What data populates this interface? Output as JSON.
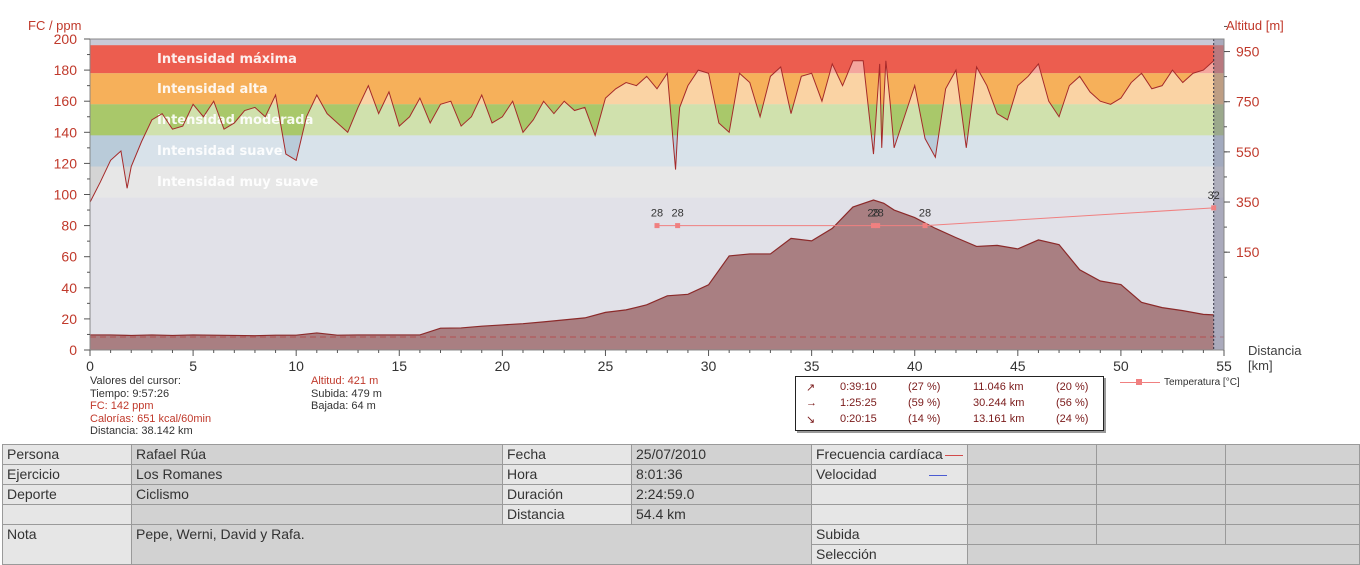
{
  "chart_data": {
    "type": "area",
    "left_axis": {
      "label": "FC / ppm",
      "ticks": [
        0,
        20,
        40,
        60,
        80,
        100,
        120,
        140,
        160,
        180,
        200
      ],
      "range": [
        0,
        200
      ]
    },
    "right_axis": {
      "label": "Altitud [m]",
      "ticks": [
        150,
        350,
        550,
        750,
        950
      ],
      "range": [
        -240,
        1000
      ]
    },
    "x_axis": {
      "label_line1": "Distancia",
      "label_line2": "[km]",
      "ticks": [
        0,
        5,
        10,
        15,
        20,
        25,
        30,
        35,
        40,
        45,
        50,
        55
      ],
      "range": [
        0,
        55
      ]
    },
    "zones": [
      {
        "name": "Intensidad máxima",
        "min": 178,
        "max": 196,
        "color": "#ec5d4f"
      },
      {
        "name": "Intensidad alta",
        "min": 158,
        "max": 178,
        "color": "#f6b05a"
      },
      {
        "name": "Intensidad moderada",
        "min": 138,
        "max": 158,
        "color": "#a9c86a"
      },
      {
        "name": "Intensidad suave",
        "min": 118,
        "max": 138,
        "color": "#b9cbd9"
      },
      {
        "name": "Intensidad muy suave",
        "min": 98,
        "max": 118,
        "color": "#d4d4d4"
      }
    ],
    "series": [
      {
        "name": "Frecuencia cardíaca",
        "unit": "ppm",
        "x": [
          0,
          0.5,
          1,
          1.5,
          1.8,
          2,
          2.5,
          3,
          3.5,
          4,
          4.5,
          5,
          5.5,
          6,
          6.5,
          7,
          7.5,
          8,
          8.5,
          9,
          9.5,
          10,
          10.5,
          11,
          11.5,
          12,
          12.5,
          13,
          13.5,
          14,
          14.5,
          15,
          15.5,
          16,
          16.5,
          17,
          17.5,
          18,
          18.5,
          19,
          19.5,
          20,
          20.5,
          21,
          21.5,
          22,
          22.5,
          23,
          23.5,
          24,
          24.5,
          25,
          25.5,
          26,
          26.5,
          27,
          27.5,
          28,
          28.4,
          28.5,
          28.6,
          29,
          29.5,
          30,
          30.5,
          31,
          31.5,
          32,
          32.5,
          33,
          33.5,
          34,
          34.5,
          35,
          35.5,
          36,
          36.5,
          37,
          37.5,
          38,
          38.3,
          38.4,
          38.5,
          38.6,
          38.8,
          39,
          39.5,
          40,
          40.5,
          41,
          41.5,
          42,
          42.5,
          43,
          43.5,
          44,
          44.5,
          45,
          45.5,
          46,
          46.5,
          47,
          47.5,
          48,
          48.5,
          49,
          49.5,
          50,
          50.5,
          51,
          51.5,
          52,
          52.5,
          53,
          53.5,
          54,
          54.5
        ],
        "values": [
          95,
          108,
          122,
          128,
          104,
          118,
          134,
          148,
          152,
          142,
          144,
          158,
          150,
          160,
          142,
          146,
          154,
          156,
          150,
          164,
          126,
          122,
          150,
          164,
          152,
          146,
          140,
          156,
          170,
          152,
          166,
          144,
          150,
          162,
          146,
          158,
          160,
          144,
          150,
          164,
          146,
          150,
          160,
          140,
          148,
          160,
          152,
          160,
          154,
          156,
          138,
          162,
          168,
          172,
          170,
          176,
          168,
          178,
          116,
          140,
          156,
          170,
          180,
          178,
          146,
          140,
          178,
          172,
          150,
          176,
          182,
          152,
          176,
          178,
          160,
          184,
          170,
          186,
          186,
          126,
          184,
          130,
          160,
          186,
          160,
          130,
          150,
          170,
          136,
          124,
          168,
          180,
          130,
          182,
          170,
          152,
          148,
          170,
          176,
          184,
          160,
          150,
          170,
          176,
          166,
          160,
          158,
          162,
          172,
          178,
          168,
          170,
          180,
          172,
          178,
          180,
          186
        ],
        "color": "#a52a2a"
      },
      {
        "name": "Altitud",
        "unit": "m",
        "x": [
          0,
          1,
          2,
          3,
          4,
          5,
          6,
          7,
          8,
          9,
          10,
          11,
          12,
          13,
          14,
          15,
          16,
          17,
          18,
          19,
          20,
          21,
          22,
          23,
          24,
          25,
          26,
          27,
          28,
          29,
          30,
          31,
          32,
          33,
          34,
          35,
          36,
          37,
          38,
          38.5,
          39,
          40,
          41,
          42,
          43,
          44,
          45,
          46,
          47,
          48,
          49,
          50,
          51,
          52,
          53,
          54,
          54.5
        ],
        "values": [
          -180,
          -180,
          -182,
          -180,
          -182,
          -180,
          -181,
          -182,
          -183,
          -181,
          -181,
          -172,
          -181,
          -180,
          -180,
          -180,
          -180,
          -153,
          -152,
          -145,
          -140,
          -135,
          -128,
          -120,
          -112,
          -90,
          -80,
          -60,
          -24,
          -18,
          20,
          135,
          143,
          143,
          205,
          195,
          245,
          330,
          358,
          345,
          318,
          288,
          245,
          208,
          173,
          177,
          163,
          199,
          180,
          80,
          35,
          21,
          -50,
          -71,
          -83,
          -98,
          -100
        ],
        "color": "#a56a6a"
      },
      {
        "name": "Temperatura [°C]",
        "unit": "°C",
        "x": [
          27.5,
          28.5,
          38.0,
          38.2,
          40.5,
          54.5
        ],
        "values": [
          28,
          28,
          28,
          28,
          28,
          32
        ],
        "color": "#f08080"
      }
    ]
  },
  "cursor_info": {
    "title": "Valores del cursor:",
    "tiempo": "Tiempo: 9:57:26",
    "fc": "FC: 142 ppm",
    "calorias": "Calorías: 651 kcal/60min",
    "distancia": "Distancia: 38.142 km",
    "altitud": "Altitud: 421 m",
    "subida": "Subida: 479 m",
    "bajada": "Bajada: 64 m"
  },
  "stats": [
    {
      "icon": "↗",
      "time": "0:39:10",
      "pct_time": "(27 %)",
      "dist": "11.046 km",
      "pct_dist": "(20 %)"
    },
    {
      "icon": "→",
      "time": "1:25:25",
      "pct_time": "(59 %)",
      "dist": "30.244 km",
      "pct_dist": "(56 %)"
    },
    {
      "icon": "↘",
      "time": "0:20:15",
      "pct_time": "(14 %)",
      "dist": "13.161 km",
      "pct_dist": "(24 %)"
    }
  ],
  "temp_legend": "Temperatura [°C]",
  "info": {
    "persona_label": "Persona",
    "persona": "Rafael Rúa",
    "ejercicio_label": "Ejercicio",
    "ejercicio": "Los Romanes",
    "deporte_label": "Deporte",
    "deporte": "Ciclismo",
    "nota_label": "Nota",
    "nota": "Pepe, Werni, David y Rafa.",
    "fecha_label": "Fecha",
    "fecha": "25/07/2010",
    "hora_label": "Hora",
    "hora": "8:01:36",
    "duracion_label": "Duración",
    "duracion": "2:24:59.0",
    "distancia_label": "Distancia",
    "distancia": "54.4 km",
    "fc_label": "Frecuencia cardíaca",
    "velocidad_label": "Velocidad",
    "subida_label": "Subida",
    "seleccion_label": "Selección"
  }
}
